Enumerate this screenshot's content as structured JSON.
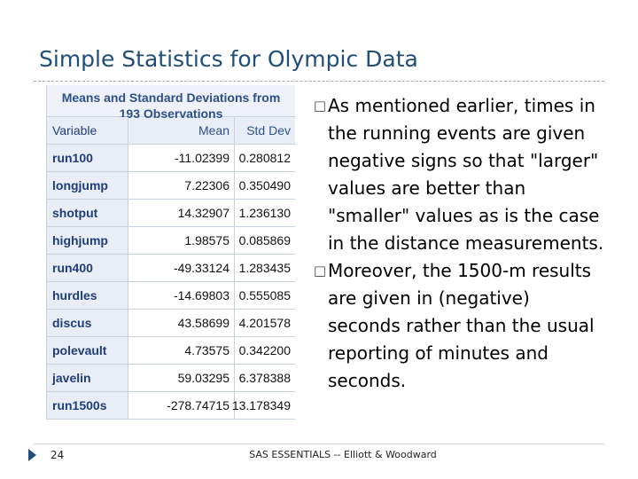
{
  "slide": {
    "title": "Simple Statistics for Olympic Data",
    "page_number": "24",
    "footer": "SAS ESSENTIALS -- Elliott & Woodward"
  },
  "table": {
    "caption_line1": "Means and Standard Deviations from",
    "caption_line2": "193 Observations",
    "headers": [
      "Variable",
      "Mean",
      "Std Dev"
    ],
    "rows": [
      [
        "run100",
        "-11.02399",
        "0.280812"
      ],
      [
        "longjump",
        "7.22306",
        "0.350490"
      ],
      [
        "shotput",
        "14.32907",
        "1.236130"
      ],
      [
        "highjump",
        "1.98575",
        "0.085869"
      ],
      [
        "run400",
        "-49.33124",
        "1.283435"
      ],
      [
        "hurdles",
        "-14.69803",
        "0.555085"
      ],
      [
        "discus",
        "43.58699",
        "4.201578"
      ],
      [
        "polevault",
        "4.73575",
        "0.342200"
      ],
      [
        "javelin",
        "59.03295",
        "6.378388"
      ],
      [
        "run1500s",
        "-278.74715",
        "13.178349"
      ]
    ]
  },
  "bullets": [
    "As mentioned earlier, times in the running events are given negative signs so that \"larger\" values are better than \"smaller\" values as is the case in the distance measurements.",
    "Moreover, the 1500-m results are given in (negative) seconds rather than the usual reporting of minutes and seconds."
  ],
  "icons": {
    "bullet": "square-bullet-icon",
    "page_marker": "triangle-marker-icon"
  },
  "colors": {
    "title": "#1f4e79",
    "table_header_text": "#2d4f8a"
  }
}
